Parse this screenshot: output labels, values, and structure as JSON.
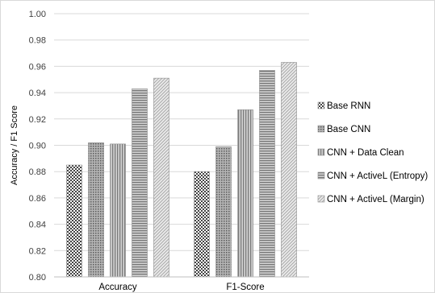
{
  "chart_data": {
    "type": "bar",
    "title": "",
    "xlabel": "",
    "ylabel": "Accuracy / F1 Score",
    "categories": [
      "Accuracy",
      "F1-Score"
    ],
    "ylim": [
      0.8,
      1.0
    ],
    "yticks": [
      "0.80",
      "0.82",
      "0.84",
      "0.86",
      "0.88",
      "0.90",
      "0.92",
      "0.94",
      "0.96",
      "0.98",
      "1.00"
    ],
    "grid": true,
    "legend_position": "right",
    "series": [
      {
        "name": "Base RNN",
        "values": [
          0.885,
          0.88
        ],
        "pattern": "checker"
      },
      {
        "name": "Base CNN",
        "values": [
          0.902,
          0.899
        ],
        "pattern": "dots"
      },
      {
        "name": "CNN + Data Clean",
        "values": [
          0.901,
          0.927
        ],
        "pattern": "vstripes"
      },
      {
        "name": "CNN + ActiveL (Entropy)",
        "values": [
          0.943,
          0.957
        ],
        "pattern": "hstripes"
      },
      {
        "name": "CNN + ActiveL (Margin)",
        "values": [
          0.951,
          0.963
        ],
        "pattern": "diag"
      }
    ]
  }
}
